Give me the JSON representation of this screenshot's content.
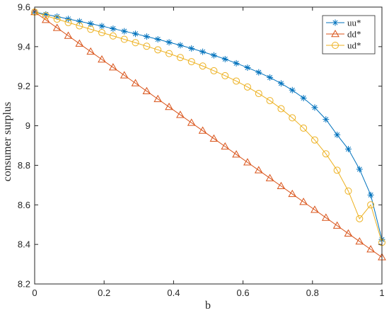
{
  "chart_data": {
    "type": "line",
    "title": "",
    "xlabel": "b",
    "ylabel": "consumer surplus",
    "xlim": [
      0,
      1
    ],
    "ylim": [
      8.2,
      9.6
    ],
    "xticks": [
      0,
      0.2,
      0.4,
      0.6,
      0.8,
      1
    ],
    "xtick_labels": [
      "0",
      "0.2",
      "0.4",
      "0.6",
      "0.8",
      "1"
    ],
    "yticks": [
      8.2,
      8.4,
      8.6,
      8.8,
      9,
      9.2,
      9.4,
      9.6
    ],
    "ytick_labels": [
      "8.2",
      "8.4",
      "8.6",
      "8.8",
      "9",
      "9.2",
      "9.4",
      "9.6"
    ],
    "grid": false,
    "legend_position": "top-right",
    "x": [
      0,
      0.0323,
      0.0645,
      0.0968,
      0.129,
      0.1613,
      0.1935,
      0.2258,
      0.2581,
      0.2903,
      0.3226,
      0.3548,
      0.3871,
      0.4194,
      0.4516,
      0.4839,
      0.5161,
      0.5484,
      0.5806,
      0.6129,
      0.6452,
      0.6774,
      0.7097,
      0.7419,
      0.7742,
      0.8065,
      0.8387,
      0.871,
      0.9032,
      0.9355,
      0.9677,
      1
    ],
    "series": [
      {
        "name": "uu*",
        "color": "#0072BD",
        "marker": "star",
        "values": [
          9.575,
          9.563,
          9.552,
          9.54,
          9.528,
          9.516,
          9.504,
          9.491,
          9.478,
          9.465,
          9.451,
          9.437,
          9.422,
          9.407,
          9.391,
          9.374,
          9.356,
          9.337,
          9.316,
          9.294,
          9.27,
          9.244,
          9.214,
          9.18,
          9.14,
          9.092,
          9.032,
          8.954,
          8.882,
          8.78,
          8.65,
          8.425
        ]
      },
      {
        "name": "dd*",
        "color": "#D95319",
        "marker": "triangle",
        "values": [
          9.575,
          9.535,
          9.495,
          9.455,
          9.415,
          9.375,
          9.335,
          9.295,
          9.255,
          9.215,
          9.175,
          9.135,
          9.095,
          9.055,
          9.015,
          8.975,
          8.935,
          8.895,
          8.855,
          8.815,
          8.775,
          8.735,
          8.695,
          8.655,
          8.615,
          8.575,
          8.535,
          8.495,
          8.455,
          8.415,
          8.375,
          8.335
        ]
      },
      {
        "name": "ud*",
        "color": "#EDB120",
        "marker": "circle",
        "values": [
          9.575,
          9.556,
          9.539,
          9.522,
          9.505,
          9.488,
          9.471,
          9.454,
          9.437,
          9.42,
          9.402,
          9.384,
          9.365,
          9.345,
          9.324,
          9.302,
          9.278,
          9.253,
          9.226,
          9.196,
          9.163,
          9.127,
          9.086,
          9.04,
          8.988,
          8.928,
          8.858,
          8.775,
          8.67,
          8.53,
          8.6,
          8.41
        ]
      }
    ]
  }
}
